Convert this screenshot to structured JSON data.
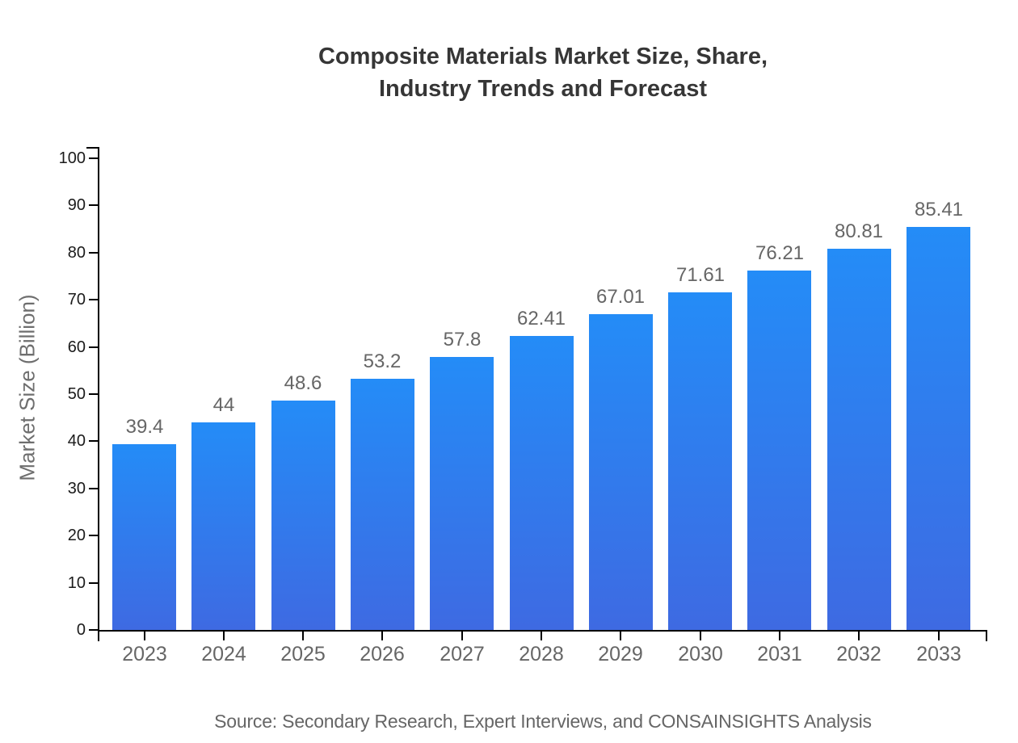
{
  "title_lines": [
    "Composite Materials Market Size, Share,",
    "Industry Trends and Forecast"
  ],
  "chart_data": {
    "type": "bar",
    "title": "Composite Materials Market Size, Share, Industry Trends and Forecast",
    "categories": [
      "2023",
      "2024",
      "2025",
      "2026",
      "2027",
      "2028",
      "2029",
      "2030",
      "2031",
      "2032",
      "2033"
    ],
    "values": [
      39.4,
      44,
      48.6,
      53.2,
      57.8,
      62.41,
      67.01,
      71.61,
      76.21,
      80.81,
      85.41
    ],
    "value_labels": [
      "39.4",
      "44",
      "48.6",
      "53.2",
      "57.8",
      "62.41",
      "67.01",
      "71.61",
      "76.21",
      "80.81",
      "85.41"
    ],
    "xlabel": "",
    "ylabel": "Market Size (Billion)",
    "ylim": [
      0,
      100
    ],
    "ytick_step": 10,
    "grid": false,
    "legend": false,
    "bar_gradient_top": "#248CF7",
    "bar_gradient_bottom": "#3E6AE2",
    "source": "Source: Secondary Research, Expert Interviews, and CONSAINSIGHTS Analysis"
  },
  "colors": {
    "background": "#ffffff",
    "title": "#363636",
    "axis": "#000000",
    "y_tick_label": "#1b1b1b",
    "x_tick_label": "#666666",
    "value_label": "#666666",
    "y_axis_title": "#6e6e6e",
    "source": "#666666"
  }
}
